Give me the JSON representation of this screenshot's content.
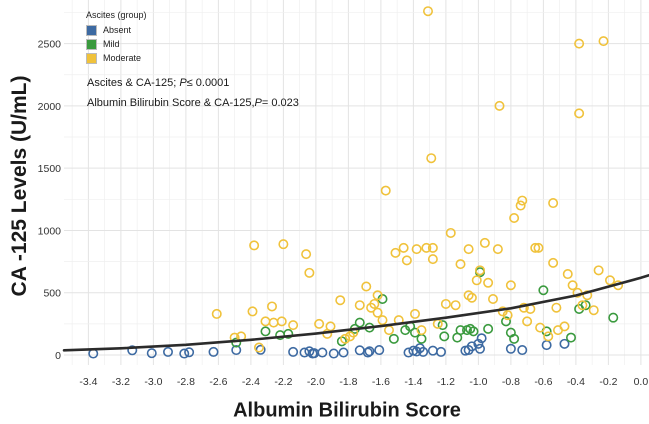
{
  "chart_data": {
    "type": "scatter",
    "title": "",
    "xlabel": "Albumin Bilirubin Score",
    "ylabel": "CA -125 Levels (U/mL)",
    "xlim": [
      -3.55,
      0.05
    ],
    "ylim": [
      -80,
      2850
    ],
    "x_ticks": [
      "-3.4",
      "-3.2",
      "-3.0",
      "-2.8",
      "-2.6",
      "-2.4",
      "-2.2",
      "-2.0",
      "-1.8",
      "-1.6",
      "-1.4",
      "-1.2",
      "-1.0",
      "-0.8",
      "-0.6",
      "-0.4",
      "-0.2",
      "0.0"
    ],
    "y_ticks": [
      "0",
      "500",
      "1000",
      "1500",
      "2000",
      "2500"
    ],
    "grid": true,
    "legend": {
      "title": "Ascites (group)",
      "position": "top-left",
      "items": [
        "Absent",
        "Mild",
        "Moderate"
      ]
    },
    "annotations": {
      "line1_prefix": "Ascites & CA-125; ",
      "line1_p": "P",
      "line1_suffix": "≤ 0.0001",
      "line2_prefix": "Albumin Bilirubin Score & CA-125,",
      "line2_p": "P",
      "line2_suffix": "= 0.023"
    },
    "colors": {
      "Absent": "#3d6aa2",
      "Mild": "#3a9a3e",
      "Moderate": "#f0c23b",
      "trend": "#2b2b2b",
      "grid": "#e3e3e3"
    },
    "trend": {
      "x": [
        -3.55,
        -3.2,
        -2.8,
        -2.4,
        -2.0,
        -1.6,
        -1.2,
        -0.8,
        -0.4,
        0.0,
        0.05
      ],
      "y": [
        38,
        54,
        82,
        122,
        172,
        232,
        300,
        375,
        478,
        620,
        640
      ]
    },
    "series": [
      {
        "name": "Absent",
        "x": [
          -3.37,
          -3.13,
          -3.01,
          -2.91,
          -2.81,
          -2.78,
          -2.63,
          -2.49,
          -2.34,
          -2.14,
          -2.07,
          -2.04,
          -2.02,
          -2.01,
          -1.96,
          -1.89,
          -1.83,
          -1.73,
          -1.68,
          -1.67,
          -1.61,
          -1.43,
          -1.4,
          -1.38,
          -1.36,
          -1.34,
          -1.28,
          -1.23,
          -1.08,
          -1.06,
          -1.04,
          -1.0,
          -0.99,
          -0.98,
          -0.8,
          -0.73,
          -0.58,
          -0.47
        ],
        "y": [
          12,
          38,
          15,
          25,
          12,
          22,
          25,
          40,
          42,
          25,
          20,
          30,
          12,
          15,
          20,
          12,
          20,
          38,
          20,
          30,
          40,
          20,
          35,
          28,
          55,
          25,
          35,
          25,
          35,
          40,
          70,
          90,
          50,
          135,
          50,
          40,
          80,
          90
        ]
      },
      {
        "name": "Mild",
        "x": [
          -2.49,
          -2.31,
          -2.22,
          -2.17,
          -1.84,
          -1.76,
          -1.73,
          -1.67,
          -1.59,
          -1.52,
          -1.45,
          -1.42,
          -1.39,
          -1.35,
          -1.22,
          -1.21,
          -1.13,
          -1.11,
          -1.07,
          -1.05,
          -1.03,
          -0.99,
          -0.94,
          -0.83,
          -0.8,
          -0.78,
          -0.6,
          -0.58,
          -0.43,
          -0.38,
          -0.34,
          -0.17
        ],
        "y": [
          100,
          190,
          160,
          170,
          110,
          210,
          260,
          220,
          450,
          130,
          200,
          230,
          180,
          130,
          240,
          150,
          140,
          200,
          200,
          210,
          190,
          665,
          210,
          270,
          180,
          130,
          520,
          190,
          140,
          370,
          400,
          300
        ]
      },
      {
        "name": "Moderate",
        "x": [
          -2.61,
          -2.5,
          -2.46,
          -2.39,
          -2.35,
          -2.31,
          -2.27,
          -2.26,
          -2.21,
          -2.14,
          -2.04,
          -1.98,
          -1.91,
          -1.85,
          -1.79,
          -1.77,
          -1.73,
          -1.69,
          -1.66,
          -1.64,
          -1.62,
          -1.59,
          -1.57,
          -1.55,
          -1.51,
          -1.49,
          -1.46,
          -1.44,
          -1.39,
          -1.38,
          -1.35,
          -1.32,
          -1.29,
          -1.28,
          -1.25,
          -1.2,
          -1.17,
          -1.14,
          -1.11,
          -1.06,
          -1.04,
          -1.01,
          -0.99,
          -0.96,
          -0.94,
          -0.91,
          -0.88,
          -0.85,
          -0.82,
          -0.8,
          -0.78,
          -0.74,
          -0.73,
          -0.72,
          -0.7,
          -0.68,
          -0.65,
          -0.63,
          -0.62,
          -0.57,
          -0.54,
          -0.52,
          -0.51,
          -0.47,
          -0.45,
          -0.42,
          -0.39,
          -0.38,
          -0.36,
          -0.33,
          -0.29,
          -0.26,
          -0.23,
          -0.19,
          -0.14,
          -1.31,
          -0.38,
          -1.28,
          -1.06,
          -0.87,
          -0.54,
          -2.2,
          -2.06,
          -1.62,
          -1.82,
          -1.93,
          -2.38
        ],
        "y": [
          330,
          140,
          150,
          350,
          60,
          270,
          390,
          260,
          270,
          240,
          660,
          250,
          230,
          440,
          150,
          180,
          400,
          550,
          380,
          410,
          480,
          280,
          1320,
          200,
          820,
          280,
          860,
          760,
          330,
          850,
          200,
          860,
          1580,
          860,
          250,
          410,
          980,
          400,
          730,
          850,
          460,
          600,
          680,
          900,
          580,
          450,
          850,
          350,
          320,
          560,
          1100,
          1200,
          1240,
          380,
          270,
          370,
          860,
          860,
          220,
          150,
          1220,
          380,
          200,
          230,
          650,
          560,
          500,
          1940,
          400,
          480,
          360,
          680,
          2520,
          600,
          560,
          2760,
          2500,
          770,
          480,
          2000,
          740,
          890,
          810,
          340,
          130,
          170,
          880
        ]
      }
    ]
  }
}
